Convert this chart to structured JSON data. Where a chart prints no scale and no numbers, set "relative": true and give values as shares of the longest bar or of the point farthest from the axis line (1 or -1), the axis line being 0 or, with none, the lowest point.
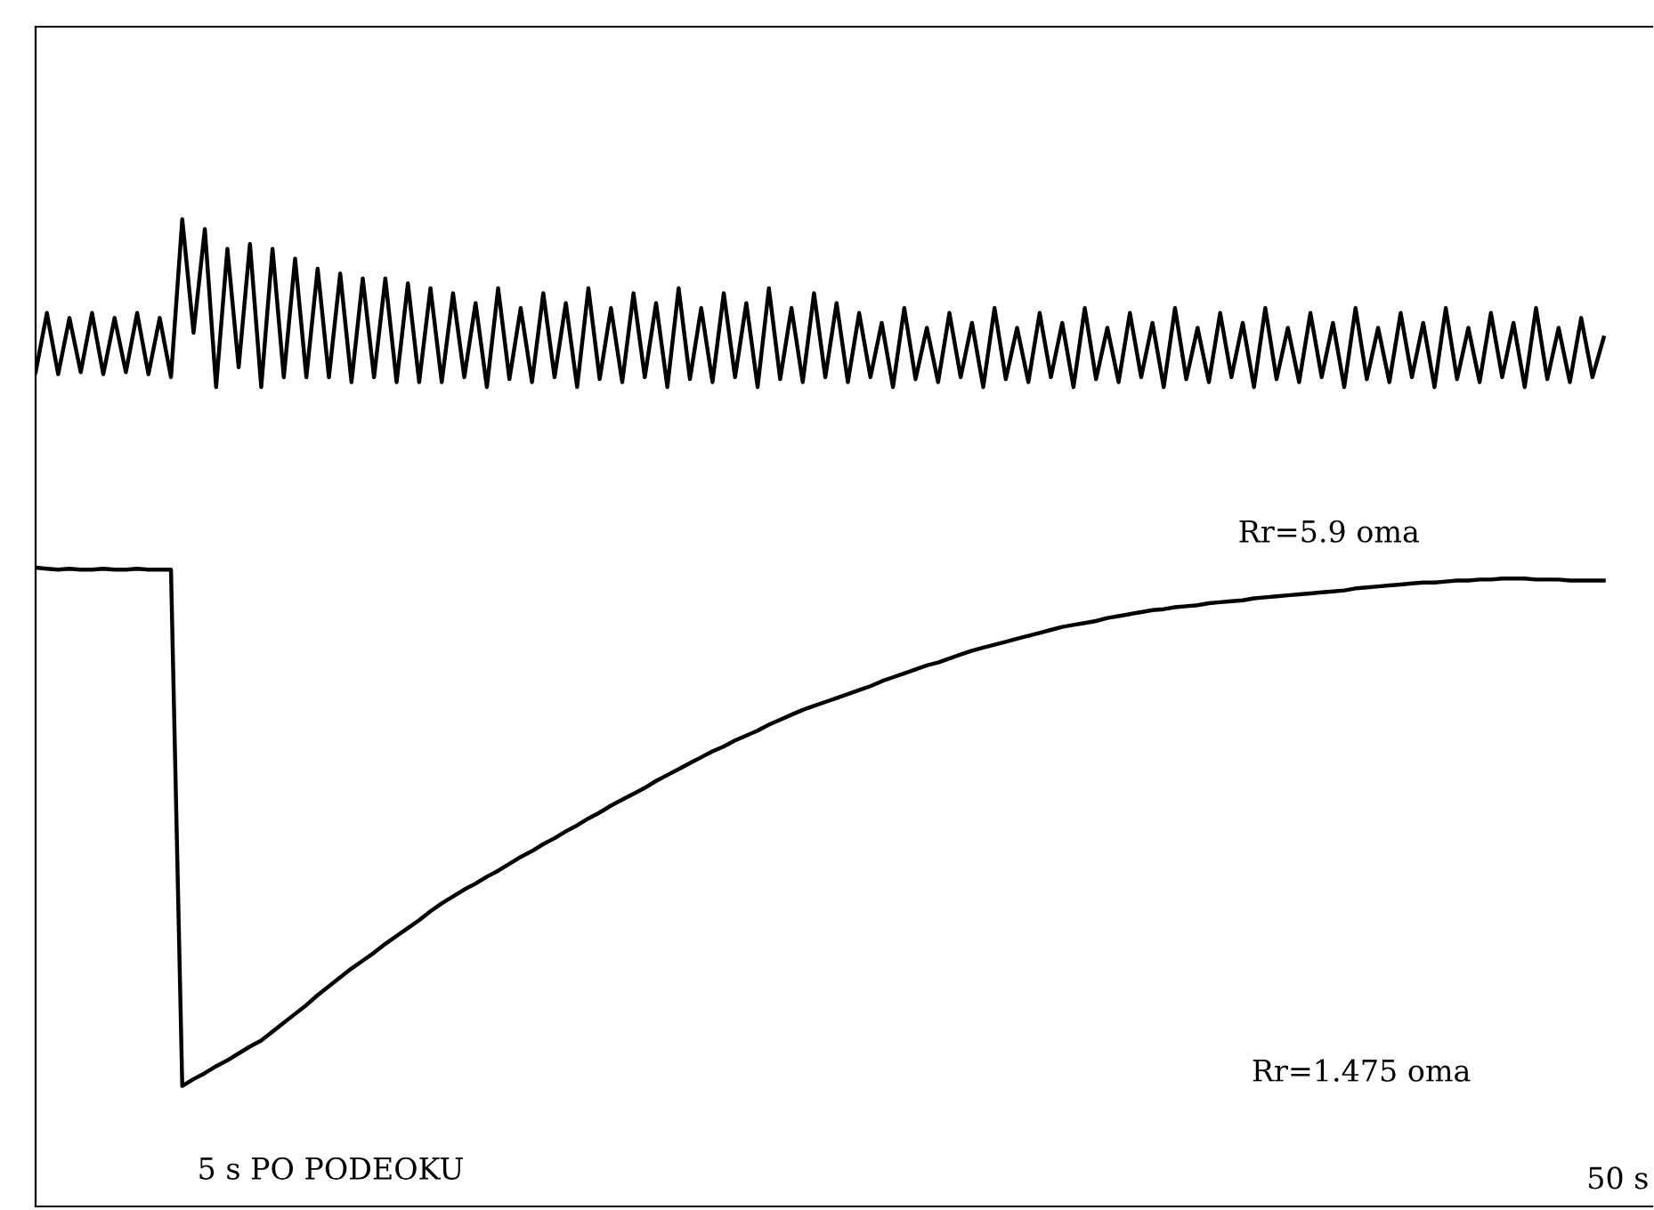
{
  "chart_data": {
    "type": "line",
    "relative": true,
    "categories": [
      null,
      null,
      null,
      null,
      null,
      null,
      null,
      null,
      null,
      null,
      null,
      null,
      null,
      null,
      null,
      null,
      null,
      null,
      null,
      null,
      null,
      null,
      null,
      null,
      null,
      null,
      null,
      null,
      null,
      null,
      null,
      null,
      null,
      null,
      null,
      null,
      null,
      null,
      null,
      null,
      null,
      null,
      null,
      null,
      null,
      null,
      null,
      null,
      null,
      null,
      null,
      null,
      null,
      null,
      null,
      null,
      null,
      null,
      null,
      null,
      null,
      null,
      null,
      null,
      null,
      null,
      null,
      null,
      null,
      null,
      null,
      null,
      null,
      null,
      null,
      null,
      null,
      null,
      null,
      null,
      null,
      null,
      null,
      null,
      null,
      null,
      null,
      null,
      null,
      null,
      null,
      null,
      null,
      null,
      null,
      null,
      null,
      null,
      null,
      null,
      null,
      null,
      null,
      null,
      null,
      null,
      null,
      null,
      null,
      null,
      null,
      null,
      null,
      null,
      null,
      null,
      null,
      null,
      null,
      null,
      null,
      null,
      null,
      null,
      null,
      null,
      null,
      null,
      null,
      null,
      null,
      null,
      null,
      null,
      null,
      null,
      null,
      null,
      null,
      null
    ],
    "series": [
      {
        "color": "#000000",
        "values": [
          0.845,
          0.905,
          0.843,
          0.9,
          0.845,
          0.905,
          0.843,
          0.9,
          0.845,
          0.905,
          0.843,
          0.9,
          0.84,
          1.0,
          0.885,
          0.99,
          0.83,
          0.97,
          0.85,
          0.975,
          0.83,
          0.97,
          0.84,
          0.96,
          0.84,
          0.95,
          0.84,
          0.945,
          0.835,
          0.94,
          0.84,
          0.94,
          0.835,
          0.935,
          0.835,
          0.93,
          0.835,
          0.925,
          0.84,
          0.915,
          0.83,
          0.93,
          0.838,
          0.91,
          0.835,
          0.925,
          0.84,
          0.915,
          0.83,
          0.93,
          0.838,
          0.91,
          0.835,
          0.925,
          0.84,
          0.915,
          0.83,
          0.93,
          0.838,
          0.91,
          0.835,
          0.925,
          0.84,
          0.915,
          0.83,
          0.93,
          0.838,
          0.91,
          0.835,
          0.925,
          0.84,
          0.915,
          0.835,
          0.905,
          0.84,
          0.895,
          0.83,
          0.91,
          0.838,
          0.89,
          0.835,
          0.905,
          0.84,
          0.895,
          0.83,
          0.91,
          0.838,
          0.89,
          0.835,
          0.905,
          0.84,
          0.895,
          0.83,
          0.91,
          0.838,
          0.89,
          0.835,
          0.905,
          0.84,
          0.895,
          0.83,
          0.91,
          0.838,
          0.89,
          0.835,
          0.905,
          0.84,
          0.895,
          0.83,
          0.91,
          0.838,
          0.89,
          0.835,
          0.905,
          0.84,
          0.895,
          0.83,
          0.91,
          0.838,
          0.89,
          0.835,
          0.905,
          0.84,
          0.895,
          0.83,
          0.91,
          0.838,
          0.89,
          0.835,
          0.905,
          0.84,
          0.895,
          0.83,
          0.91,
          0.838,
          0.89,
          0.835,
          0.9,
          0.84,
          0.88
        ]
      },
      {
        "color": "#000000",
        "values": [
          0.647,
          0.646,
          0.645,
          0.646,
          0.645,
          0.645,
          0.646,
          0.645,
          0.645,
          0.646,
          0.645,
          0.645,
          0.645,
          0.122,
          0.129,
          0.135,
          0.142,
          0.148,
          0.155,
          0.162,
          0.168,
          0.177,
          0.186,
          0.195,
          0.204,
          0.214,
          0.223,
          0.232,
          0.241,
          0.249,
          0.257,
          0.266,
          0.274,
          0.282,
          0.29,
          0.299,
          0.307,
          0.314,
          0.321,
          0.327,
          0.334,
          0.34,
          0.347,
          0.354,
          0.36,
          0.367,
          0.373,
          0.38,
          0.386,
          0.393,
          0.399,
          0.406,
          0.412,
          0.418,
          0.424,
          0.431,
          0.437,
          0.443,
          0.449,
          0.455,
          0.461,
          0.466,
          0.472,
          0.477,
          0.482,
          0.488,
          0.493,
          0.498,
          0.503,
          0.507,
          0.511,
          0.515,
          0.519,
          0.523,
          0.527,
          0.532,
          0.536,
          0.54,
          0.544,
          0.548,
          0.551,
          0.555,
          0.559,
          0.563,
          0.566,
          0.569,
          0.572,
          0.575,
          0.578,
          0.581,
          0.584,
          0.587,
          0.589,
          0.591,
          0.593,
          0.596,
          0.598,
          0.6,
          0.602,
          0.604,
          0.605,
          0.607,
          0.608,
          0.609,
          0.611,
          0.612,
          0.613,
          0.614,
          0.616,
          0.617,
          0.618,
          0.619,
          0.62,
          0.621,
          0.622,
          0.623,
          0.624,
          0.626,
          0.627,
          0.628,
          0.629,
          0.63,
          0.631,
          0.632,
          0.632,
          0.633,
          0.634,
          0.634,
          0.635,
          0.635,
          0.636,
          0.636,
          0.636,
          0.635,
          0.635,
          0.635,
          0.634,
          0.634,
          0.634,
          0.634
        ]
      }
    ],
    "annotations": [
      "5 s PO PODEOKU",
      "Rr=5.9 oma",
      "Rr=1.475 oma",
      "50 s"
    ]
  }
}
